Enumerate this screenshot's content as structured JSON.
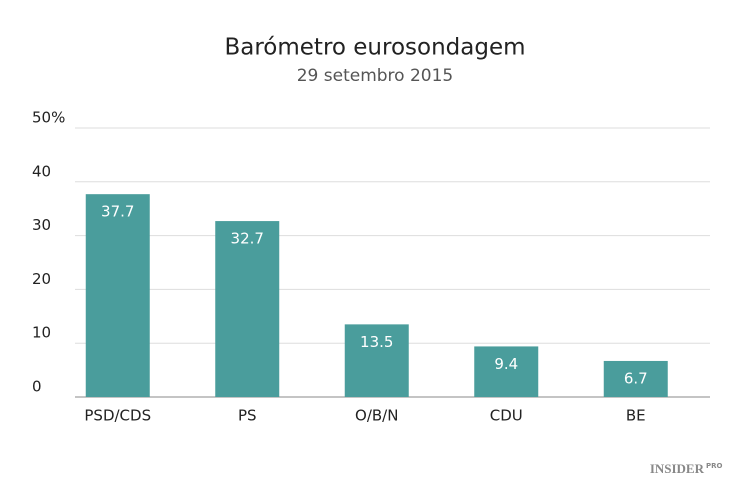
{
  "chart_data": {
    "type": "bar",
    "title": "Barómetro eurosondagem",
    "subtitle": "29 setembro 2015",
    "categories": [
      "PSD/CDS",
      "PS",
      "O/B/N",
      "CDU",
      "BE"
    ],
    "values": [
      37.7,
      32.7,
      13.5,
      9.4,
      6.7
    ],
    "color": "#4a9d9c",
    "ylim": [
      0,
      50
    ],
    "yticks": [
      0,
      10,
      20,
      30,
      40,
      {
        "value": 50,
        "label": "50%"
      }
    ],
    "grid": true,
    "footer": "INSIDER",
    "footer_badge": "PRO"
  }
}
